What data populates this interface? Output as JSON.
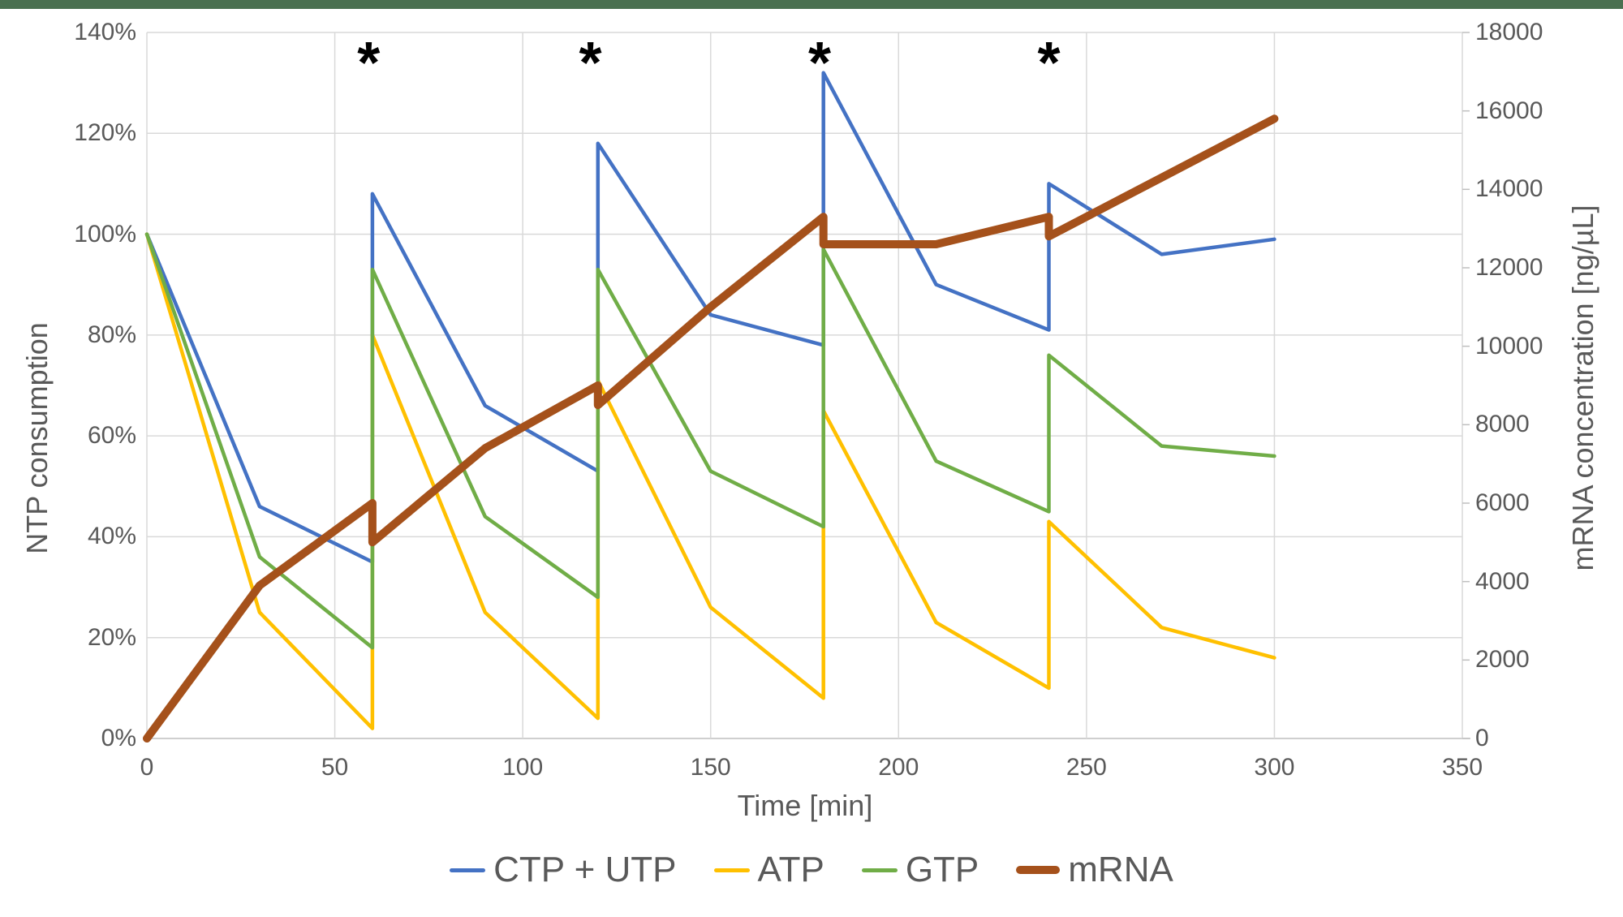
{
  "page": {
    "top_bar_color": "#4A7050"
  },
  "chart_data": {
    "type": "line",
    "title": "",
    "grid": true,
    "legend_position": "bottom",
    "colors": {
      "gridline": "#D9D9D9",
      "axis_line": "#BFBFBF",
      "label_text": "#595959",
      "annotation": "#000000"
    },
    "x": {
      "label": "Time [min]",
      "min": 0,
      "max": 350,
      "tick_values": [
        0,
        50,
        100,
        150,
        200,
        250,
        300,
        350
      ],
      "tick_labels": [
        "0",
        "50",
        "100",
        "150",
        "200",
        "250",
        "300",
        "350"
      ]
    },
    "y_left": {
      "label": "NTP consumption",
      "min": 0,
      "max": 140,
      "tick_values": [
        0,
        20,
        40,
        60,
        80,
        100,
        120,
        140
      ],
      "tick_labels": [
        "0%",
        "20%",
        "40%",
        "60%",
        "80%",
        "100%",
        "120%",
        "140%"
      ]
    },
    "y_right": {
      "label": "mRNA concentration [ng/µL]",
      "min": 0,
      "max": 18000,
      "tick_values": [
        0,
        2000,
        4000,
        6000,
        8000,
        10000,
        12000,
        14000,
        16000,
        18000
      ],
      "tick_labels": [
        "0",
        "2000",
        "4000",
        "6000",
        "8000",
        "10000",
        "12000",
        "14000",
        "16000",
        "18000"
      ]
    },
    "time": [
      0,
      30,
      60,
      60,
      90,
      120,
      120,
      150,
      180,
      180,
      210,
      240,
      240,
      270,
      300
    ],
    "series": [
      {
        "name": "CTP + UTP",
        "axis": "left",
        "color": "#4472C4",
        "width": 4.5,
        "values": [
          100,
          46,
          35,
          108,
          66,
          53,
          118,
          84,
          78,
          132,
          90,
          81,
          110,
          96,
          99
        ]
      },
      {
        "name": "ATP",
        "axis": "left",
        "color": "#FFC000",
        "width": 4.5,
        "values": [
          100,
          25,
          2,
          80,
          25,
          4,
          71,
          26,
          8,
          65,
          23,
          10,
          43,
          22,
          16
        ]
      },
      {
        "name": "GTP",
        "axis": "left",
        "color": "#70AD47",
        "width": 4.5,
        "values": [
          100,
          36,
          18,
          93,
          44,
          28,
          93,
          53,
          42,
          97,
          55,
          45,
          76,
          58,
          56
        ]
      },
      {
        "name": "mRNA",
        "axis": "right",
        "color": "#A5511B",
        "width": 10,
        "values": [
          0,
          3900,
          6000,
          5000,
          7400,
          9000,
          8500,
          11000,
          13300,
          12600,
          12600,
          13300,
          12800,
          14300,
          15800
        ]
      }
    ],
    "annotations": {
      "symbol": "*",
      "times": [
        59,
        118,
        179,
        240
      ]
    }
  }
}
